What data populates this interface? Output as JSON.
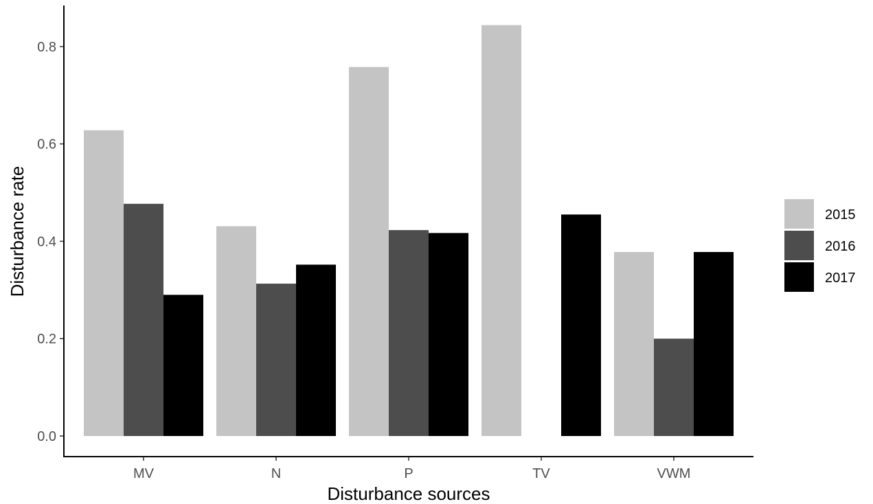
{
  "chart_data": {
    "type": "bar",
    "title": "",
    "xlabel": "Disturbance sources",
    "ylabel": "Disturbance rate",
    "categories": [
      "MV",
      "N",
      "P",
      "TV",
      "VWM"
    ],
    "series": [
      {
        "name": "2015",
        "color": "#c4c4c4",
        "values": [
          0.628,
          0.431,
          0.758,
          0.844,
          0.378
        ]
      },
      {
        "name": "2016",
        "color": "#4d4d4d",
        "values": [
          0.477,
          0.313,
          0.423,
          null,
          0.2
        ]
      },
      {
        "name": "2017",
        "color": "#000000",
        "values": [
          0.29,
          0.352,
          0.417,
          0.455,
          0.378
        ]
      }
    ],
    "ylim": [
      0,
      0.88
    ],
    "yticks": [
      "0.0",
      "0.2",
      "0.4",
      "0.6",
      "0.8"
    ],
    "grid": false,
    "legend_position": "right"
  }
}
